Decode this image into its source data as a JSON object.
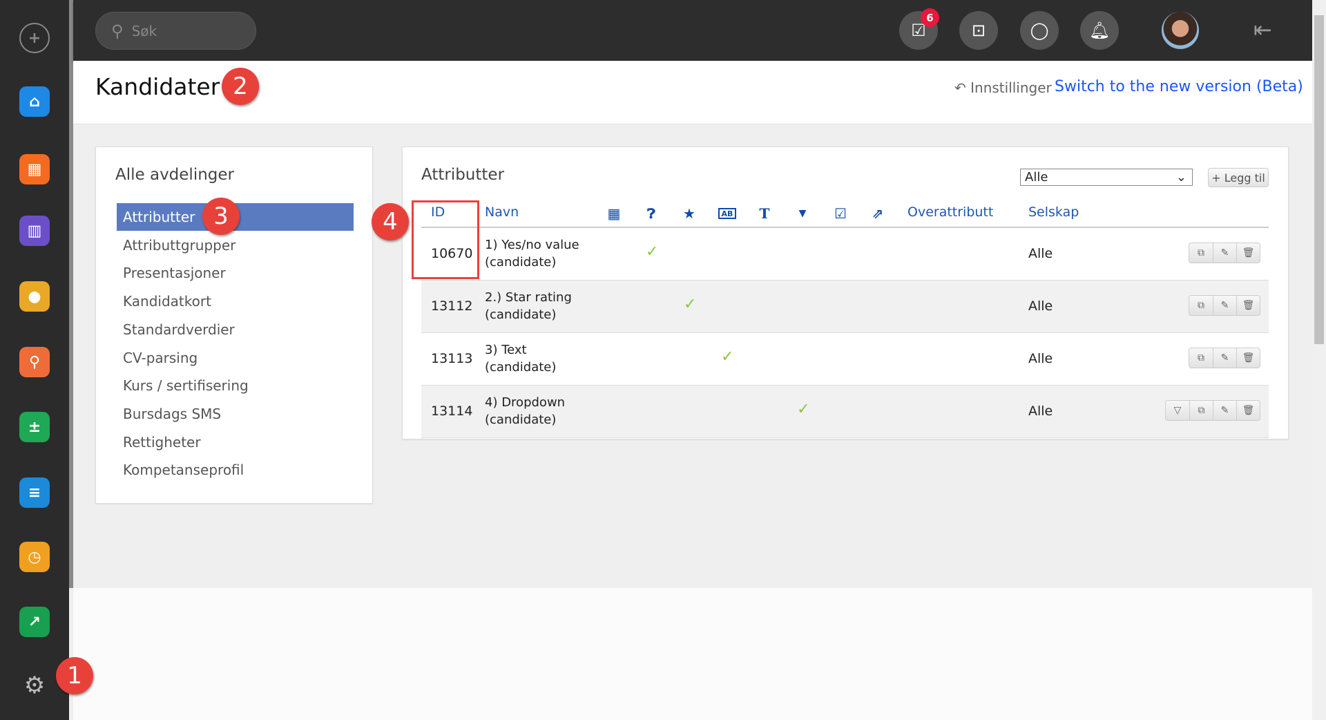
{
  "search": {
    "placeholder": "Søk"
  },
  "topbar": {
    "tasks_badge": "6",
    "icons": [
      "tasks-icon",
      "inbox-icon",
      "chat-icon",
      "bell-icon"
    ]
  },
  "header": {
    "title": "Kandidater",
    "settings_label": "Innstillinger",
    "beta_link": "Switch to the new version (Beta)"
  },
  "left_panel": {
    "title": "Alle avdelinger",
    "items": [
      "Attributter",
      "Attributtgrupper",
      "Presentasjoner",
      "Kandidatkort",
      "Standardverdier",
      "CV-parsing",
      "Kurs / sertifisering",
      "Bursdags SMS",
      "Rettigheter",
      "Kompetanseprofil"
    ],
    "active": 0
  },
  "right_panel": {
    "title": "Attributter",
    "filter_value": "Alle",
    "add_label": "+ Legg til",
    "columns": {
      "id": "ID",
      "name": "Navn",
      "icons": [
        "calendar-icon",
        "question-chat-icon",
        "star-icon",
        "ab-icon",
        "text-icon",
        "caret-down-icon",
        "checkbox-icon",
        "share-icon"
      ],
      "parent": "Overattributt",
      "company": "Selskap"
    },
    "rows": [
      {
        "id": "10670",
        "name1": "1) Yes/no value",
        "name2": "(candidate)",
        "checked_col": 1,
        "company": "Alle",
        "dropdown": false
      },
      {
        "id": "13112",
        "name1": "2.) Star rating",
        "name2": "(candidate)",
        "checked_col": 2,
        "company": "Alle",
        "dropdown": false
      },
      {
        "id": "13113",
        "name1": "3) Text",
        "name2": "(candidate)",
        "checked_col": 3,
        "company": "Alle",
        "dropdown": false
      },
      {
        "id": "13114",
        "name1": "4) Dropdown",
        "name2": "(candidate)",
        "checked_col": 5,
        "company": "Alle",
        "dropdown": true
      }
    ]
  },
  "annotations": [
    "1",
    "2",
    "3",
    "4"
  ],
  "colors": {
    "accent": "#5b7bc1",
    "link": "#1a56ff",
    "header_icon": "#0e4aa8",
    "check": "#8cc63f",
    "annotation": "#e8413a"
  }
}
